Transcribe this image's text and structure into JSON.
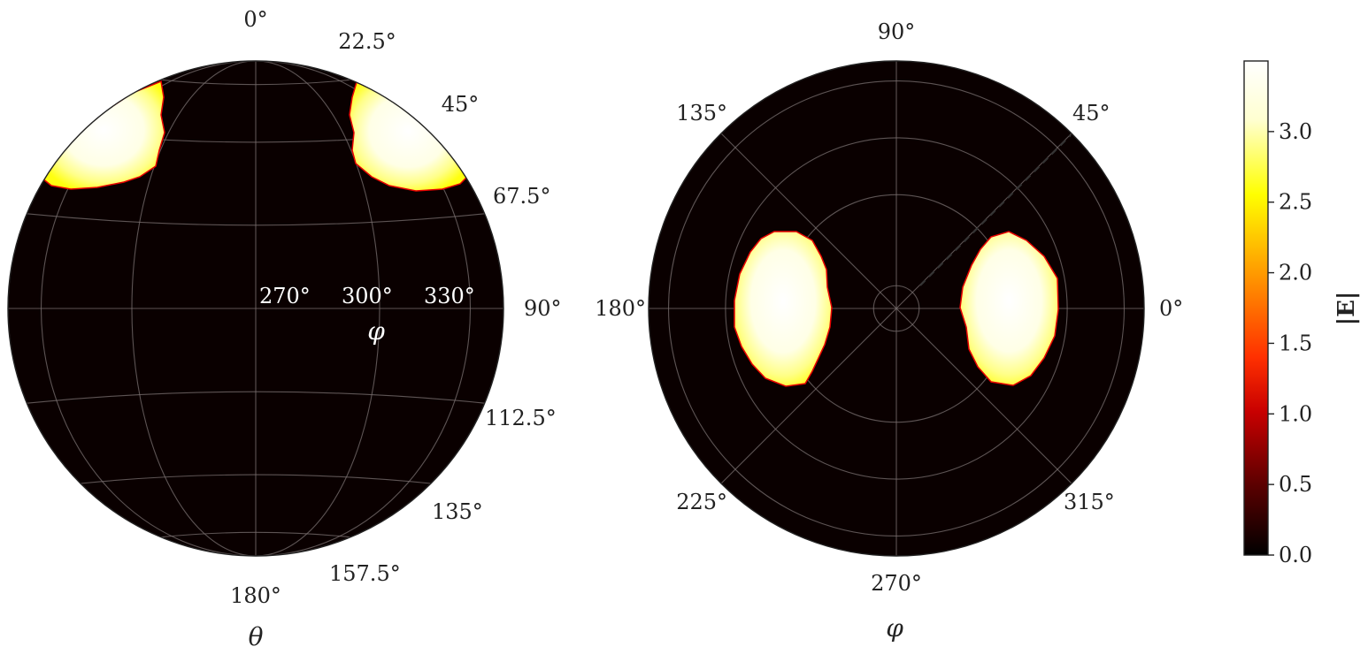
{
  "chart_data": [
    {
      "type": "heatmap",
      "projection": "orthographic sphere (theta-phi)",
      "xlabel": "φ",
      "ylabel": "θ",
      "theta_ticks": [
        "0°",
        "22.5°",
        "45°",
        "67.5°",
        "90°",
        "112.5°",
        "135°",
        "157.5°",
        "180°"
      ],
      "phi_ticks": [
        "270°",
        "300°",
        "330°"
      ],
      "theta_values_deg": [
        0,
        22.5,
        45,
        67.5,
        90,
        112.5,
        135,
        157.5,
        180
      ],
      "phi_values_deg": [
        270,
        300,
        330
      ],
      "grid": true,
      "bright_regions": [
        {
          "theta_range_deg": [
            22.5,
            67.5
          ],
          "phi_range_deg": [
            300,
            360
          ],
          "peak_value": 3.4
        },
        {
          "theta_range_deg": [
            22.5,
            67.5
          ],
          "phi_range_deg": [
            180,
            240
          ],
          "peak_value": 3.4
        }
      ],
      "background_value": 0.0
    },
    {
      "type": "heatmap",
      "projection": "polar (top view)",
      "xlabel": "φ",
      "angle_ticks": [
        "0°",
        "45°",
        "90°",
        "135°",
        "180°",
        "225°",
        "270°",
        "315°"
      ],
      "angle_values_deg": [
        0,
        45,
        90,
        135,
        180,
        225,
        270,
        315
      ],
      "radial_rings": 4,
      "grid": true,
      "bright_regions": [
        {
          "phi_center_deg": 0,
          "phi_halfwidth_deg": 32,
          "radial_range": [
            0.26,
            0.66
          ],
          "peak_value": 3.4
        },
        {
          "phi_center_deg": 180,
          "phi_halfwidth_deg": 32,
          "radial_range": [
            0.31,
            0.71
          ],
          "peak_value": 3.4
        }
      ],
      "background_value": 0.0
    }
  ],
  "colorbar": {
    "label": "|E|",
    "ticks": [
      "0.0",
      "0.5",
      "1.0",
      "1.5",
      "2.0",
      "2.5",
      "3.0"
    ],
    "tick_values": [
      0,
      0.5,
      1.0,
      1.5,
      2.0,
      2.5,
      3.0
    ],
    "range": [
      0,
      3.5
    ],
    "colormap": "hot",
    "colors": [
      "#000000",
      "#5a0000",
      "#c80000",
      "#ff3000",
      "#ff9a00",
      "#ffff00",
      "#ffffd0",
      "#ffffff"
    ]
  }
}
